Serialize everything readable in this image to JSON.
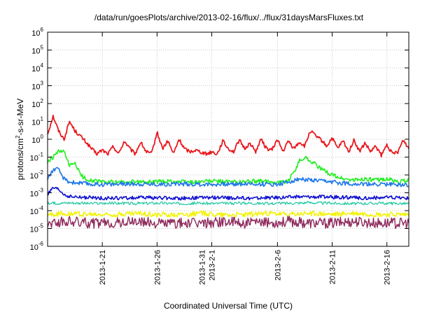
{
  "chart_data": {
    "type": "line",
    "title": "/data/run/goesPlots/archive/2013-02-16/flux/../flux/31daysMarsFluxes.txt",
    "xlabel": "Coordinated Universal Time (UTC)",
    "ylabel_prefix": "protons/cm",
    "ylabel_sup": "2",
    "ylabel_suffix": "-s-sr-MeV",
    "y_scale": "log",
    "ylim": [
      1e-06,
      1000000
    ],
    "xlim": [
      "2013-01-16",
      "2013-02-18"
    ],
    "grid": true,
    "y_ticks": [
      {
        "value": 1e-06,
        "base": "10",
        "exp": "-6"
      },
      {
        "value": 1e-05,
        "base": "10",
        "exp": "-5"
      },
      {
        "value": 0.0001,
        "base": "10",
        "exp": "-4"
      },
      {
        "value": 0.001,
        "base": "10",
        "exp": "-3"
      },
      {
        "value": 0.01,
        "base": "10",
        "exp": "-2"
      },
      {
        "value": 0.1,
        "base": "10",
        "exp": "-1"
      },
      {
        "value": 1,
        "base": "10",
        "exp": "0"
      },
      {
        "value": 10,
        "base": "10",
        "exp": "1"
      },
      {
        "value": 100,
        "base": "10",
        "exp": "2"
      },
      {
        "value": 1000,
        "base": "10",
        "exp": "3"
      },
      {
        "value": 10000,
        "base": "10",
        "exp": "4"
      },
      {
        "value": 100000,
        "base": "10",
        "exp": "5"
      },
      {
        "value": 1000000,
        "base": "10",
        "exp": "6"
      }
    ],
    "x_ticks": [
      {
        "date": "2013-01-21",
        "lines": [
          "2013-1-21"
        ]
      },
      {
        "date": "2013-01-26",
        "lines": [
          "2013-1-26"
        ]
      },
      {
        "date": "2013-01-31",
        "lines": [
          "2013-1-31",
          "2013-2-1"
        ]
      },
      {
        "date": "2013-02-06",
        "lines": [
          "2013-2-6"
        ]
      },
      {
        "date": "2013-02-11",
        "lines": [
          "2013-2-11"
        ]
      },
      {
        "date": "2013-02-16",
        "lines": [
          "2013-2-16"
        ]
      }
    ],
    "colors": {
      "red": "#e8191e",
      "green": "#22ee22",
      "blue": "#1e78ea",
      "navy": "#1010d0",
      "teal": "#20c8a0",
      "yellow": "#f2f20a",
      "maroon": "#8e2a5c"
    },
    "series": [
      {
        "color": "red",
        "x": [
          "2013-01-16",
          "2013-01-16.5",
          "2013-01-17",
          "2013-01-17.5",
          "2013-01-18",
          "2013-01-18.5",
          "2013-01-19",
          "2013-01-19.5",
          "2013-01-20",
          "2013-01-20.5",
          "2013-01-21",
          "2013-01-21.5",
          "2013-01-22",
          "2013-01-22.5",
          "2013-01-23",
          "2013-01-23.5",
          "2013-01-24",
          "2013-01-24.5",
          "2013-01-25",
          "2013-01-25.5",
          "2013-01-26",
          "2013-01-26.5",
          "2013-01-27",
          "2013-01-27.5",
          "2013-01-28",
          "2013-01-28.5",
          "2013-01-29",
          "2013-01-29.5",
          "2013-01-30",
          "2013-01-30.5",
          "2013-01-31",
          "2013-01-31.5",
          "2013-02-01",
          "2013-02-01.5",
          "2013-02-02",
          "2013-02-02.5",
          "2013-02-03",
          "2013-02-03.5",
          "2013-02-04",
          "2013-02-04.5",
          "2013-02-05",
          "2013-02-05.5",
          "2013-02-06",
          "2013-02-06.5",
          "2013-02-07",
          "2013-02-07.5",
          "2013-02-08",
          "2013-02-08.5",
          "2013-02-09",
          "2013-02-09.5",
          "2013-02-10",
          "2013-02-10.5",
          "2013-02-11",
          "2013-02-11.5",
          "2013-02-12",
          "2013-02-12.5",
          "2013-02-13",
          "2013-02-13.5",
          "2013-02-14",
          "2013-02-14.5",
          "2013-02-15",
          "2013-02-15.5",
          "2013-02-16",
          "2013-02-16.5",
          "2013-02-17",
          "2013-02-17.5",
          "2013-02-18"
        ],
        "values": [
          2,
          20,
          3,
          1,
          10,
          3,
          1.5,
          0.7,
          0.3,
          0.15,
          0.25,
          0.15,
          0.4,
          0.15,
          0.8,
          0.3,
          0.15,
          0.7,
          0.2,
          0.15,
          2.5,
          0.3,
          0.8,
          0.15,
          1,
          0.3,
          0.2,
          0.25,
          0.2,
          0.15,
          0.2,
          0.15,
          0.8,
          0.3,
          0.2,
          0.9,
          0.3,
          0.6,
          0.2,
          1,
          0.3,
          0.25,
          1,
          0.2,
          0.8,
          0.3,
          0.7,
          0.4,
          3,
          1.5,
          0.9,
          0.4,
          1.2,
          0.3,
          0.8,
          0.2,
          0.9,
          0.2,
          0.6,
          0.2,
          0.4,
          0.12,
          0.5,
          0.15,
          0.2,
          0.9,
          0.3
        ]
      },
      {
        "color": "green",
        "x": [
          "2013-01-16",
          "2013-01-17",
          "2013-01-17.5",
          "2013-01-18",
          "2013-01-18.5",
          "2013-01-19",
          "2013-01-19.5",
          "2013-01-20",
          "2013-01-21",
          "2013-01-23",
          "2013-01-25",
          "2013-01-27",
          "2013-01-29",
          "2013-01-31",
          "2013-02-02",
          "2013-02-04",
          "2013-02-06",
          "2013-02-07",
          "2013-02-07.5",
          "2013-02-08",
          "2013-02-08.5",
          "2013-02-09",
          "2013-02-09.5",
          "2013-02-10",
          "2013-02-10.5",
          "2013-02-11",
          "2013-02-12",
          "2013-02-13",
          "2013-02-14",
          "2013-02-15",
          "2013-02-16",
          "2013-02-17",
          "2013-02-18"
        ],
        "values": [
          0.05,
          0.2,
          0.2,
          0.03,
          0.05,
          0.01,
          0.006,
          0.005,
          0.004,
          0.004,
          0.004,
          0.0045,
          0.004,
          0.0045,
          0.004,
          0.0045,
          0.004,
          0.0045,
          0.015,
          0.06,
          0.1,
          0.06,
          0.04,
          0.02,
          0.015,
          0.01,
          0.006,
          0.005,
          0.006,
          0.005,
          0.006,
          0.004,
          0.005
        ]
      },
      {
        "color": "blue",
        "x": [
          "2013-01-16",
          "2013-01-16.5",
          "2013-01-17",
          "2013-01-17.5",
          "2013-01-18",
          "2013-01-19",
          "2013-01-20",
          "2013-01-22",
          "2013-01-24",
          "2013-01-26",
          "2013-01-28",
          "2013-01-30",
          "2013-02-01",
          "2013-02-03",
          "2013-02-05",
          "2013-02-06",
          "2013-02-07",
          "2013-02-08",
          "2013-02-09",
          "2013-02-10",
          "2013-02-11",
          "2013-02-12",
          "2013-02-14",
          "2013-02-16",
          "2013-02-18"
        ],
        "values": [
          0.006,
          0.02,
          0.02,
          0.006,
          0.004,
          0.0035,
          0.003,
          0.003,
          0.0032,
          0.003,
          0.0032,
          0.003,
          0.003,
          0.0032,
          0.003,
          0.003,
          0.004,
          0.006,
          0.005,
          0.0045,
          0.004,
          0.0035,
          0.003,
          0.003,
          0.0028
        ]
      },
      {
        "color": "navy",
        "x": [
          "2013-01-16",
          "2013-01-16.5",
          "2013-01-17",
          "2013-01-17.5",
          "2013-01-18",
          "2013-01-19",
          "2013-01-21",
          "2013-01-23",
          "2013-01-25",
          "2013-01-27",
          "2013-01-29",
          "2013-01-31",
          "2013-02-02",
          "2013-02-04",
          "2013-02-06",
          "2013-02-08",
          "2013-02-10",
          "2013-02-12",
          "2013-02-14",
          "2013-02-16",
          "2013-02-18"
        ],
        "values": [
          0.0008,
          0.0018,
          0.0015,
          0.0008,
          0.0006,
          0.00055,
          0.0005,
          0.0005,
          0.00055,
          0.0005,
          0.0005,
          0.00055,
          0.0005,
          0.0005,
          0.00055,
          0.0006,
          0.0006,
          0.00055,
          0.0005,
          0.00055,
          0.0005
        ]
      },
      {
        "color": "teal",
        "x": [
          "2013-01-16",
          "2013-01-18",
          "2013-01-20",
          "2013-01-22",
          "2013-01-24",
          "2013-01-26",
          "2013-01-28",
          "2013-01-30",
          "2013-02-01",
          "2013-02-03",
          "2013-02-05",
          "2013-02-07",
          "2013-02-09",
          "2013-02-11",
          "2013-02-13",
          "2013-02-15",
          "2013-02-18"
        ],
        "values": [
          0.00025,
          0.00028,
          0.00025,
          0.00026,
          0.00025,
          0.00027,
          0.00025,
          0.00026,
          0.00025,
          0.00027,
          0.00025,
          0.00026,
          0.00028,
          0.00026,
          0.00025,
          0.00026,
          0.00025
        ]
      },
      {
        "color": "yellow",
        "x": [
          "2013-01-16",
          "2013-01-18",
          "2013-01-20",
          "2013-01-22",
          "2013-01-24",
          "2013-01-26",
          "2013-01-28",
          "2013-01-30",
          "2013-02-01",
          "2013-02-03",
          "2013-02-05",
          "2013-02-07",
          "2013-02-09",
          "2013-02-11",
          "2013-02-13",
          "2013-02-15",
          "2013-02-18"
        ],
        "values": [
          6e-05,
          7e-05,
          6e-05,
          6e-05,
          7e-05,
          6e-05,
          6e-05,
          7e-05,
          6e-05,
          6e-05,
          7e-05,
          6e-05,
          7e-05,
          6e-05,
          7e-05,
          6e-05,
          6e-05
        ]
      },
      {
        "color": "maroon",
        "x": [
          "2013-01-16",
          "2013-01-18",
          "2013-01-20",
          "2013-01-22",
          "2013-01-24",
          "2013-01-26",
          "2013-01-28",
          "2013-01-30",
          "2013-02-01",
          "2013-02-03",
          "2013-02-05",
          "2013-02-07",
          "2013-02-09",
          "2013-02-11",
          "2013-02-13",
          "2013-02-15",
          "2013-02-18"
        ],
        "values": [
          2e-05,
          2.5e-05,
          2e-05,
          2e-05,
          2.5e-05,
          2e-05,
          2e-05,
          2e-05,
          2.5e-05,
          2e-05,
          2e-05,
          2.5e-05,
          2e-05,
          2e-05,
          2.5e-05,
          2e-05,
          2e-05
        ]
      }
    ]
  }
}
